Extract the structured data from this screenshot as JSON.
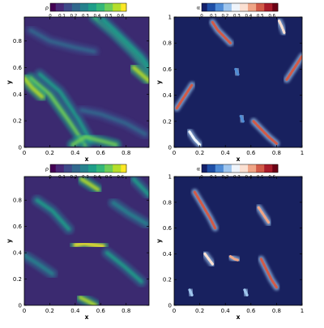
{
  "colormaps": {
    "viridis": [
      "#440154",
      "#482878",
      "#3e4989",
      "#31688e",
      "#26828e",
      "#1f9e89",
      "#35b779",
      "#6ece58",
      "#b5de2b",
      "#fde725"
    ],
    "bluered": [
      "#14206b",
      "#1f4fa6",
      "#4f8cd6",
      "#9fc6ee",
      "#eef4fb",
      "#fbe0d2",
      "#f0a586",
      "#d25b48",
      "#a81c2a",
      "#6b0015"
    ]
  },
  "panel_background": {
    "viridis": "#3b2a70",
    "bluered": "#18215f"
  },
  "chart_data": [
    {
      "type": "heatmap",
      "position": "top-left",
      "colorbar": {
        "label": "ρ",
        "ticks": [
          "0",
          "0.1",
          "0.2",
          "0.3",
          "0.4",
          "0.5",
          "0.6"
        ],
        "range": [
          0,
          0.65
        ],
        "colormap": "viridis"
      },
      "xlabel": "x",
      "ylabel": "y",
      "xticks": [
        "0",
        "0.2",
        "0.4",
        "0.6",
        "0.8"
      ],
      "xtick_values": [
        0,
        0.2,
        0.4,
        0.6,
        0.8
      ],
      "xlim": [
        0,
        0.98
      ],
      "yticks": [
        "0",
        "0.2",
        "0.4",
        "0.6",
        "0.8"
      ],
      "ytick_values": [
        0,
        0.2,
        0.4,
        0.6,
        0.8
      ],
      "ylim": [
        0,
        0.98
      ],
      "features": [
        {
          "x": [
            0.55,
            0.7,
            0.85,
            0.98
          ],
          "y": [
            0.98,
            0.86,
            0.72,
            0.58
          ],
          "level": 0.45
        },
        {
          "x": [
            0.62,
            0.76,
            0.92,
            0.98
          ],
          "y": [
            0.96,
            0.83,
            0.68,
            0.6
          ],
          "level": 0.35
        },
        {
          "x": [
            0.05,
            0.2,
            0.35,
            0.48
          ],
          "y": [
            0.52,
            0.4,
            0.2,
            0.02
          ],
          "level": 0.5
        },
        {
          "x": [
            0.12,
            0.28,
            0.42,
            0.52
          ],
          "y": [
            0.55,
            0.42,
            0.22,
            0.05
          ],
          "level": 0.35
        },
        {
          "x": [
            0.0,
            0.06,
            0.14
          ],
          "y": [
            0.52,
            0.45,
            0.38
          ],
          "level": 0.6
        },
        {
          "x": [
            0.86,
            0.92,
            0.98
          ],
          "y": [
            0.6,
            0.55,
            0.5
          ],
          "level": 0.6
        },
        {
          "x": [
            0.38,
            0.48,
            0.6,
            0.72
          ],
          "y": [
            0.02,
            0.08,
            0.05,
            0.02
          ],
          "level": 0.5
        },
        {
          "x": [
            0.05,
            0.2,
            0.4,
            0.55
          ],
          "y": [
            0.88,
            0.8,
            0.75,
            0.72
          ],
          "level": 0.25
        },
        {
          "x": [
            0.45,
            0.6,
            0.8,
            0.95
          ],
          "y": [
            0.28,
            0.25,
            0.18,
            0.1
          ],
          "level": 0.25
        }
      ]
    },
    {
      "type": "heatmap",
      "position": "top-right",
      "colorbar": {
        "label": "α",
        "ticks": [
          "0",
          "0.1",
          "0.2",
          "0.3",
          "0.4",
          "0.5",
          "0.6"
        ],
        "range": [
          0,
          0.65
        ],
        "colormap": "bluered"
      },
      "xlabel": "x",
      "ylabel": "y",
      "xticks": [
        "0",
        "0.2",
        "0.4",
        "0.6",
        "0.8",
        "1"
      ],
      "xtick_values": [
        0,
        0.2,
        0.4,
        0.6,
        0.8,
        1
      ],
      "xlim": [
        0,
        1
      ],
      "yticks": [
        "0",
        "0.2",
        "0.4",
        "0.6",
        "0.8",
        "1"
      ],
      "ytick_values": [
        0,
        0.2,
        0.4,
        0.6,
        0.8,
        1
      ],
      "ylim": [
        0,
        1
      ],
      "features": [
        {
          "x": [
            0.3,
            0.34,
            0.4,
            0.44
          ],
          "y": [
            0.96,
            0.9,
            0.84,
            0.8
          ],
          "level": 0.55
        },
        {
          "x": [
            0.82,
            0.84,
            0.86
          ],
          "y": [
            0.97,
            0.93,
            0.88
          ],
          "level": 0.4
        },
        {
          "x": [
            0.02,
            0.06,
            0.1,
            0.14
          ],
          "y": [
            0.3,
            0.36,
            0.42,
            0.48
          ],
          "level": 0.6
        },
        {
          "x": [
            0.88,
            0.92,
            0.96,
            1.0
          ],
          "y": [
            0.52,
            0.58,
            0.64,
            0.7
          ],
          "level": 0.6
        },
        {
          "x": [
            0.12,
            0.16,
            0.2
          ],
          "y": [
            0.12,
            0.06,
            0.02
          ],
          "level": 0.35
        },
        {
          "x": [
            0.62,
            0.68,
            0.74,
            0.8
          ],
          "y": [
            0.2,
            0.14,
            0.08,
            0.03
          ],
          "level": 0.6
        },
        {
          "x": [
            0.52,
            0.54
          ],
          "y": [
            0.24,
            0.2
          ],
          "level": 0.2
        },
        {
          "x": [
            0.48,
            0.5
          ],
          "y": [
            0.6,
            0.56
          ],
          "level": 0.2
        }
      ]
    },
    {
      "type": "heatmap",
      "position": "bottom-left",
      "colorbar": {
        "label": "ρ",
        "ticks": [
          "0",
          "0.1",
          "0.2",
          "0.3",
          "0.4",
          "0.5",
          "0.6"
        ],
        "range": [
          0,
          0.65
        ],
        "colormap": "viridis"
      },
      "xlabel": "x",
      "ylabel": "y",
      "xticks": [
        "0",
        "0.2",
        "0.4",
        "0.6",
        "0.8"
      ],
      "xtick_values": [
        0,
        0.2,
        0.4,
        0.6,
        0.8
      ],
      "xlim": [
        0,
        0.98
      ],
      "yticks": [
        "0",
        "0.2",
        "0.4",
        "0.6",
        "0.8"
      ],
      "ytick_values": [
        0,
        0.2,
        0.4,
        0.6,
        0.8
      ],
      "ylim": [
        0,
        0.98
      ],
      "features": [
        {
          "x": [
            0.4,
            0.47,
            0.54,
            0.62
          ],
          "y": [
            0.46,
            0.47,
            0.46,
            0.45
          ],
          "level": 0.65
        },
        {
          "x": [
            0.45,
            0.5,
            0.58
          ],
          "y": [
            0.96,
            0.93,
            0.88
          ],
          "level": 0.55
        },
        {
          "x": [
            0.44,
            0.5,
            0.56
          ],
          "y": [
            0.06,
            0.03,
            0.0
          ],
          "level": 0.55
        },
        {
          "x": [
            0.1,
            0.22,
            0.35
          ],
          "y": [
            0.8,
            0.72,
            0.58
          ],
          "level": 0.35
        },
        {
          "x": [
            0.65,
            0.78,
            0.92
          ],
          "y": [
            0.4,
            0.3,
            0.18
          ],
          "level": 0.35
        },
        {
          "x": [
            0.0,
            0.1,
            0.22
          ],
          "y": [
            0.38,
            0.32,
            0.24
          ],
          "level": 0.3
        },
        {
          "x": [
            0.7,
            0.82,
            0.96
          ],
          "y": [
            0.78,
            0.7,
            0.62
          ],
          "level": 0.3
        },
        {
          "x": [
            0.86,
            0.92,
            0.98
          ],
          "y": [
            0.96,
            0.9,
            0.84
          ],
          "level": 0.35
        }
      ]
    },
    {
      "type": "heatmap",
      "position": "bottom-right",
      "colorbar": {
        "label": "α",
        "ticks": [
          "0",
          "0.1",
          "0.2",
          "0.3",
          "0.4",
          "0.5",
          "0.6"
        ],
        "range": [
          0,
          0.65
        ],
        "colormap": "bluered"
      },
      "xlabel": "x",
      "ylabel": "y",
      "xticks": [
        "0",
        "0.2",
        "0.4",
        "0.6",
        "0.8",
        "1"
      ],
      "xtick_values": [
        0,
        0.2,
        0.4,
        0.6,
        0.8,
        1
      ],
      "xlim": [
        0,
        1
      ],
      "yticks": [
        "0",
        "0.2",
        "0.4",
        "0.6",
        "0.8",
        "1"
      ],
      "ytick_values": [
        0,
        0.2,
        0.4,
        0.6,
        0.8,
        1
      ],
      "ylim": [
        0,
        1
      ],
      "features": [
        {
          "x": [
            0.16,
            0.22,
            0.28,
            0.32
          ],
          "y": [
            0.88,
            0.78,
            0.68,
            0.6
          ],
          "level": 0.6
        },
        {
          "x": [
            0.66,
            0.7,
            0.74
          ],
          "y": [
            0.76,
            0.7,
            0.64
          ],
          "level": 0.45
        },
        {
          "x": [
            0.24,
            0.27,
            0.3
          ],
          "y": [
            0.4,
            0.36,
            0.32
          ],
          "level": 0.4
        },
        {
          "x": [
            0.44,
            0.47,
            0.5
          ],
          "y": [
            0.38,
            0.36,
            0.35
          ],
          "level": 0.5
        },
        {
          "x": [
            0.68,
            0.72,
            0.76,
            0.8
          ],
          "y": [
            0.36,
            0.28,
            0.2,
            0.14
          ],
          "level": 0.6
        },
        {
          "x": [
            0.12,
            0.14
          ],
          "y": [
            0.12,
            0.08
          ],
          "level": 0.25
        },
        {
          "x": [
            0.55,
            0.57
          ],
          "y": [
            0.12,
            0.08
          ],
          "level": 0.25
        }
      ]
    }
  ]
}
